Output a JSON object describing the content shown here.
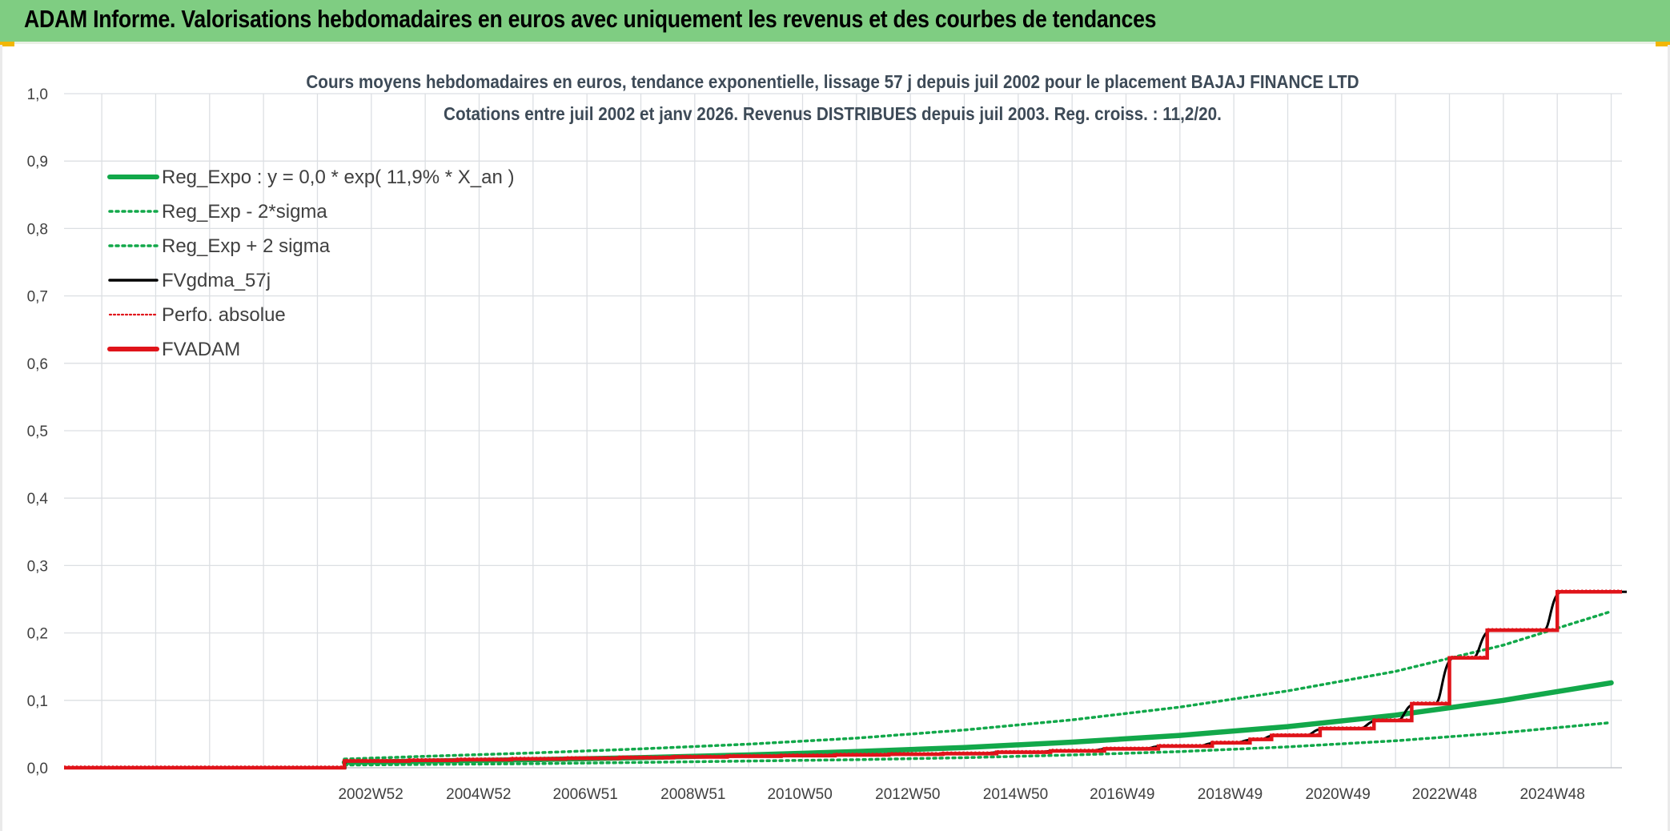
{
  "header": {
    "title": "ADAM Informe. Valorisations hebdomadaires en euros avec uniquement les revenus et des courbes de tendances"
  },
  "chart_data": {
    "type": "line",
    "title_line1": "Cours moyens hebdomadaires en euros, tendance exponentielle, lissage 57 j depuis juil 2002 pour le placement BAJAJ FINANCE LTD",
    "title_line2": "Cotations entre juil 2002 et janv 2026. Revenus DISTRIBUES depuis juil 2003. Reg. croiss. : 11,2/20.",
    "ylim": [
      0,
      1.0
    ],
    "xlim": [
      1997.3,
      2026.2
    ],
    "y_ticks": [
      "0,0",
      "0,1",
      "0,2",
      "0,3",
      "0,4",
      "0,5",
      "0,6",
      "0,7",
      "0,8",
      "0,9",
      "1,0"
    ],
    "x_ticks": [
      {
        "label": "2002W52",
        "x": 2002.99
      },
      {
        "label": "2004W52",
        "x": 2004.99
      },
      {
        "label": "2006W51",
        "x": 2006.97
      },
      {
        "label": "2008W51",
        "x": 2008.97
      },
      {
        "label": "2010W50",
        "x": 2010.95
      },
      {
        "label": "2012W50",
        "x": 2012.95
      },
      {
        "label": "2014W50",
        "x": 2014.95
      },
      {
        "label": "2016W49",
        "x": 2016.93
      },
      {
        "label": "2018W49",
        "x": 2018.93
      },
      {
        "label": "2020W49",
        "x": 2020.93
      },
      {
        "label": "2022W48",
        "x": 2022.91
      },
      {
        "label": "2024W48",
        "x": 2024.91
      }
    ],
    "legend": {
      "position": "top-left",
      "entries": [
        {
          "key": "reg_expo",
          "label": "Reg_Expo : y = 0,0 * exp( 11,9% *  X_an )",
          "color": "#12a84a",
          "style": "solid-thick"
        },
        {
          "key": "reg_minus",
          "label": "Reg_Exp - 2*sigma",
          "color": "#12a84a",
          "style": "dotted"
        },
        {
          "key": "reg_plus",
          "label": "Reg_Exp + 2 sigma",
          "color": "#12a84a",
          "style": "dotted"
        },
        {
          "key": "fvgdma",
          "label": "FVgdma_57j",
          "color": "#000000",
          "style": "solid"
        },
        {
          "key": "perfo",
          "label": "Perfo. absolue",
          "color": "#e0141a",
          "style": "dotted-thin"
        },
        {
          "key": "fvadam",
          "label": "FVADAM",
          "color": "#e0141a",
          "style": "solid-thick"
        }
      ]
    },
    "series": [
      {
        "name": "Reg_Expo",
        "x": [
          2002.5,
          2004,
          2006,
          2008,
          2010,
          2012,
          2014,
          2016,
          2018,
          2020,
          2022,
          2024,
          2026
        ],
        "values": [
          0.008,
          0.01,
          0.012,
          0.015,
          0.019,
          0.024,
          0.03,
          0.038,
          0.048,
          0.061,
          0.078,
          0.1,
          0.126
        ]
      },
      {
        "name": "Reg_Exp - 2*sigma",
        "x": [
          2002.5,
          2004,
          2006,
          2008,
          2010,
          2012,
          2014,
          2016,
          2018,
          2020,
          2022,
          2024,
          2026
        ],
        "values": [
          0.004,
          0.005,
          0.006,
          0.008,
          0.01,
          0.012,
          0.015,
          0.019,
          0.024,
          0.031,
          0.04,
          0.052,
          0.067
        ]
      },
      {
        "name": "Reg_Exp + 2 sigma",
        "x": [
          2002.5,
          2004,
          2006,
          2008,
          2010,
          2012,
          2014,
          2016,
          2018,
          2020,
          2022,
          2024,
          2026
        ],
        "values": [
          0.013,
          0.017,
          0.022,
          0.028,
          0.035,
          0.044,
          0.056,
          0.071,
          0.09,
          0.114,
          0.143,
          0.182,
          0.232
        ]
      },
      {
        "name": "FVADAM",
        "x": [
          1997.3,
          2002.45,
          2002.5,
          2003.7,
          2004.6,
          2005.6,
          2006.6,
          2007.6,
          2008.6,
          2009.6,
          2010.6,
          2011.6,
          2012.6,
          2013.6,
          2014.6,
          2015.6,
          2016.6,
          2017.6,
          2018.6,
          2019.3,
          2019.7,
          2020.6,
          2021.6,
          2022.3,
          2023.0,
          2023.7,
          2024.5,
          2025.0,
          2026.2
        ],
        "values": [
          0.0,
          0.0,
          0.01,
          0.011,
          0.012,
          0.013,
          0.014,
          0.015,
          0.016,
          0.017,
          0.018,
          0.019,
          0.02,
          0.021,
          0.023,
          0.025,
          0.028,
          0.032,
          0.037,
          0.042,
          0.048,
          0.058,
          0.07,
          0.095,
          0.163,
          0.204,
          0.204,
          0.261,
          0.261
        ]
      }
    ]
  }
}
